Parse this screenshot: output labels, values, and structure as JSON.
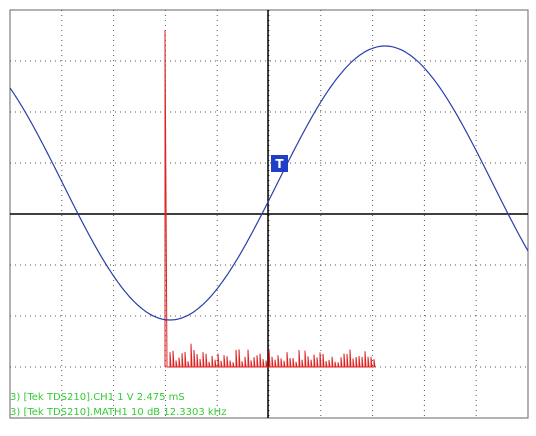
{
  "screen": {
    "trigger_marker": "T",
    "status_lines": [
      "3) [Tek TDS210].CH1  1  V   2.475 mS",
      "3) [Tek TDS210].MATH1  10  dB   12.3303 kHz"
    ]
  }
}
